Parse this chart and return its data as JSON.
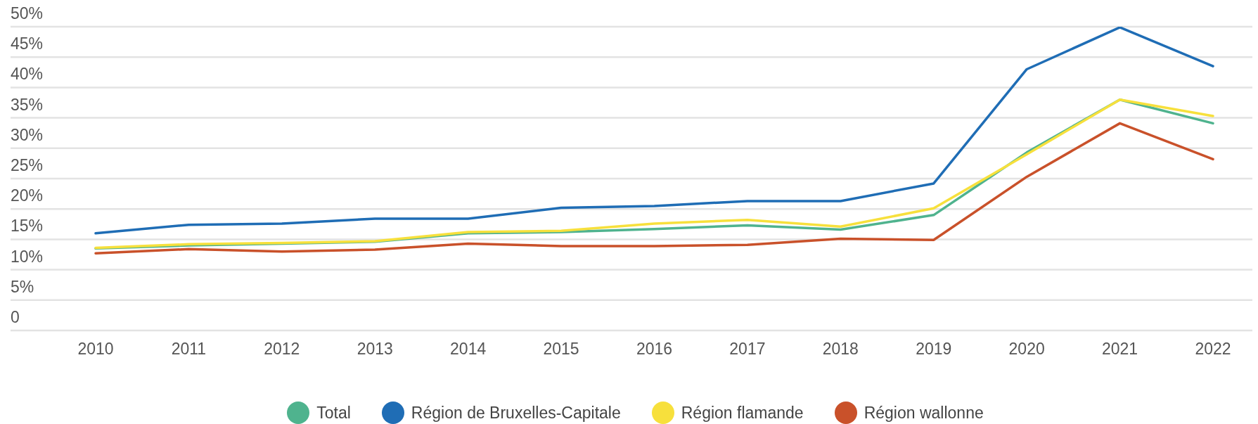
{
  "chart_data": {
    "type": "line",
    "categories": [
      "2010",
      "2011",
      "2012",
      "2013",
      "2014",
      "2015",
      "2016",
      "2017",
      "2018",
      "2019",
      "2020",
      "2021",
      "2022"
    ],
    "series": [
      {
        "name": "Total",
        "color": "#4fb38e",
        "values": [
          13.5,
          14.0,
          14.3,
          14.6,
          16.0,
          16.2,
          16.7,
          17.3,
          16.6,
          19.0,
          29.3,
          38.0,
          34.1
        ]
      },
      {
        "name": "Région de Bruxelles-Capitale",
        "color": "#1f6db5",
        "values": [
          16.0,
          17.4,
          17.6,
          18.4,
          18.4,
          20.2,
          20.5,
          21.3,
          21.3,
          24.2,
          43.0,
          49.9,
          43.5
        ]
      },
      {
        "name": "Région flamande",
        "color": "#f7e03c",
        "values": [
          13.6,
          14.2,
          14.4,
          14.7,
          16.2,
          16.4,
          17.6,
          18.2,
          17.1,
          20.1,
          29.0,
          38.0,
          35.3
        ]
      },
      {
        "name": "Région wallonne",
        "color": "#c9512a",
        "values": [
          12.7,
          13.4,
          13.0,
          13.3,
          14.3,
          13.9,
          13.9,
          14.1,
          15.1,
          14.9,
          25.3,
          34.1,
          28.2
        ]
      }
    ],
    "ylim": [
      0,
      50
    ],
    "yticks": [
      0,
      {
        "value": 5,
        "label": "5%"
      },
      {
        "value": 10,
        "label": "10%"
      },
      {
        "value": 15,
        "label": "15%"
      },
      {
        "value": 20,
        "label": "20%"
      },
      {
        "value": 25,
        "label": "25%"
      },
      {
        "value": 30,
        "label": "30%"
      },
      {
        "value": 35,
        "label": "35%"
      },
      {
        "value": 40,
        "label": "40%"
      },
      {
        "value": 45,
        "label": "45%"
      },
      {
        "value": 50,
        "label": "50%"
      }
    ],
    "grid": "y",
    "legend": "bottom",
    "marker": "none",
    "line_style": "solid"
  }
}
